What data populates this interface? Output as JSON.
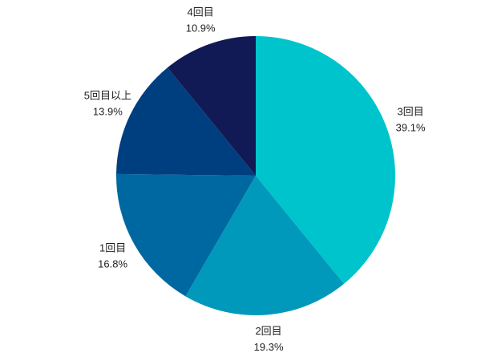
{
  "chart_data": {
    "type": "pie",
    "categories": [
      "3回目",
      "2回目",
      "1回目",
      "5回目以上",
      "4回目"
    ],
    "values": [
      39.1,
      19.3,
      16.8,
      13.9,
      10.9
    ],
    "value_labels": [
      "39.1%",
      "19.3%",
      "16.8%",
      "13.9%",
      "10.9%"
    ],
    "colors": [
      "#00c4cc",
      "#0099bb",
      "#0068a0",
      "#003f7f",
      "#111a55"
    ]
  }
}
